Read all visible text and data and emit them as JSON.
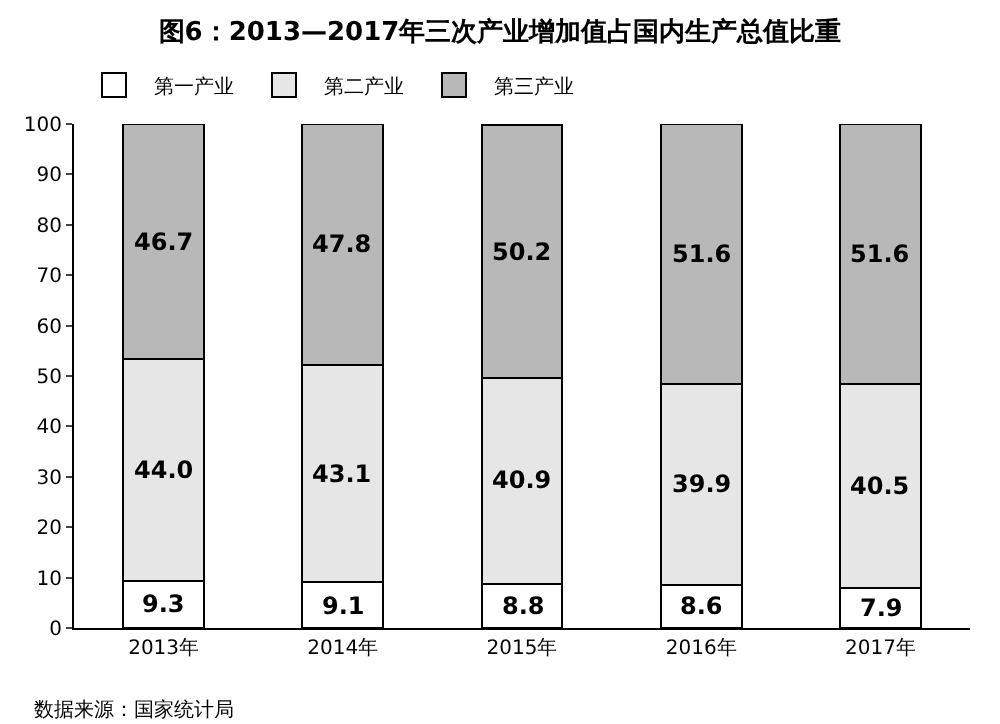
{
  "chart_data": {
    "type": "bar",
    "stacked": true,
    "title": "图6：2013—2017年三次产业增加值占国内生产总值比重",
    "categories": [
      "2013年",
      "2014年",
      "2015年",
      "2016年",
      "2017年"
    ],
    "series": [
      {
        "name": "第一产业",
        "color": "#ffffff",
        "values": [
          9.3,
          9.1,
          8.8,
          8.6,
          7.9
        ],
        "value_labels": [
          "9.3",
          "9.1",
          "8.8",
          "8.6",
          "7.9"
        ]
      },
      {
        "name": "第二产业",
        "color": "#e6e6e6",
        "values": [
          44.0,
          43.1,
          40.9,
          39.9,
          40.5
        ],
        "value_labels": [
          "44.0",
          "43.1",
          "40.9",
          "39.9",
          "40.5"
        ]
      },
      {
        "name": "第三产业",
        "color": "#b8b8b8",
        "values": [
          46.7,
          47.8,
          50.2,
          51.6,
          51.6
        ],
        "value_labels": [
          "46.7",
          "47.8",
          "50.2",
          "51.6",
          "51.6"
        ]
      }
    ],
    "ylim": [
      0,
      100
    ],
    "yticks": [
      0,
      10,
      20,
      30,
      40,
      50,
      60,
      70,
      80,
      90,
      100
    ],
    "grid": false,
    "legend": "top left",
    "annotations": [
      "数据来源：国家统计局"
    ]
  }
}
